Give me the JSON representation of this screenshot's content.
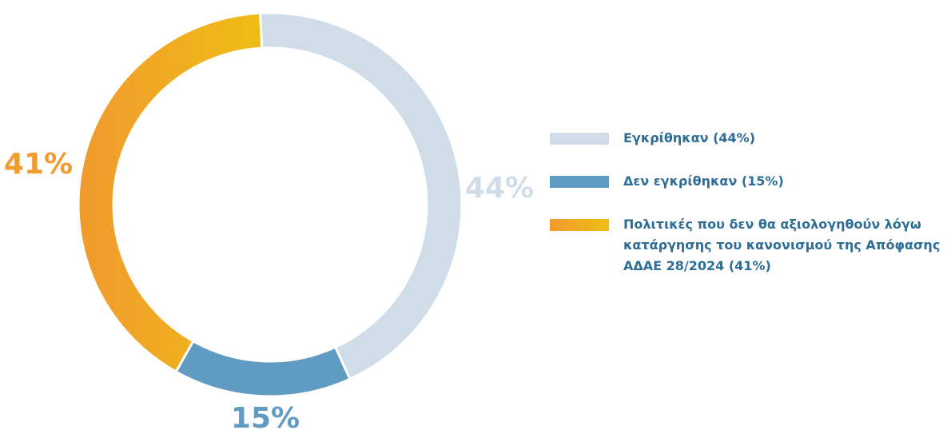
{
  "chart_data": {
    "type": "pie",
    "categories": [
      "Εγκρίθηκαν (44%)",
      "Δεν εγκρίθηκαν (15%)",
      "Πολιτικές που δεν θα αξιολογηθούν λόγω κατάργησης του κανονισμού της Απόφασης ΑΔΑΕ 28/2024 (41%)"
    ],
    "values": [
      44,
      15,
      41
    ],
    "value_labels": [
      "44%",
      "15%",
      "41%"
    ],
    "colors": [
      "#d0dde9",
      "#5f9bc3",
      [
        "#f09a2f",
        "#efbd14"
      ]
    ]
  }
}
